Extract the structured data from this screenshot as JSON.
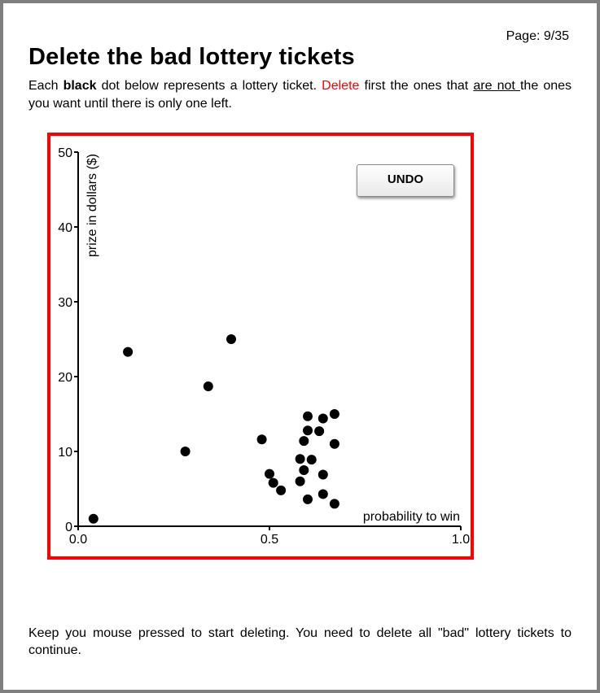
{
  "page": {
    "label": "Page: 9/35"
  },
  "title": "Delete the bad lottery tickets",
  "instructions": {
    "p1": "Each ",
    "bold": "black",
    "p2": " dot below represents a lottery ticket. ",
    "red": "Delete",
    "p3": " first the ones that ",
    "underlined": "are not ",
    "p4": "the ones you want until there is only one left."
  },
  "undo_label": "UNDO",
  "footer": "Keep you mouse pressed to start deleting. You need to delete all \"bad\" lottery tickets to continue.",
  "colors": {
    "accent": "#ff0000",
    "frame": "#7f7f7f",
    "dots": "#000000"
  },
  "chart_data": {
    "type": "scatter",
    "xlabel": "probability to win",
    "ylabel": "prize in dollars ($)",
    "xlim": [
      0,
      1.0
    ],
    "ylim": [
      0,
      50
    ],
    "xticks": [
      "0.0",
      "0.5",
      "1.0"
    ],
    "yticks": [
      "0",
      "10",
      "20",
      "30",
      "40",
      "50"
    ],
    "xtick_values": [
      0,
      0.5,
      1.0
    ],
    "ytick_values": [
      0,
      10,
      20,
      30,
      40,
      50
    ],
    "grid": false,
    "series": [
      {
        "points": [
          [
            0.04,
            1.0
          ],
          [
            0.13,
            23.3
          ],
          [
            0.28,
            10.0
          ],
          [
            0.34,
            18.7
          ],
          [
            0.4,
            25.0
          ],
          [
            0.48,
            11.6
          ],
          [
            0.5,
            7.0
          ],
          [
            0.51,
            5.8
          ],
          [
            0.53,
            4.8
          ],
          [
            0.58,
            6.0
          ],
          [
            0.58,
            9.0
          ],
          [
            0.59,
            7.5
          ],
          [
            0.59,
            11.4
          ],
          [
            0.6,
            14.7
          ],
          [
            0.6,
            12.8
          ],
          [
            0.6,
            3.6
          ],
          [
            0.61,
            8.9
          ],
          [
            0.63,
            12.7
          ],
          [
            0.64,
            14.4
          ],
          [
            0.64,
            4.3
          ],
          [
            0.64,
            6.9
          ],
          [
            0.67,
            11.0
          ],
          [
            0.67,
            3.0
          ],
          [
            0.67,
            15.0
          ]
        ]
      }
    ]
  }
}
